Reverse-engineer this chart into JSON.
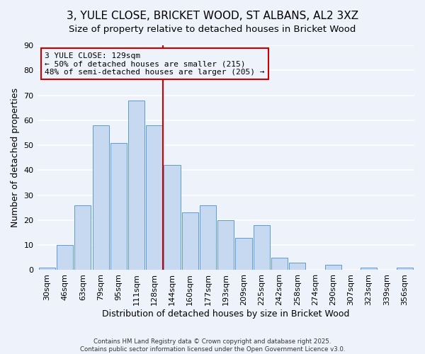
{
  "title": "3, YULE CLOSE, BRICKET WOOD, ST ALBANS, AL2 3XZ",
  "subtitle": "Size of property relative to detached houses in Bricket Wood",
  "xlabel": "Distribution of detached houses by size in Bricket Wood",
  "ylabel": "Number of detached properties",
  "bar_labels": [
    "30sqm",
    "46sqm",
    "63sqm",
    "79sqm",
    "95sqm",
    "111sqm",
    "128sqm",
    "144sqm",
    "160sqm",
    "177sqm",
    "193sqm",
    "209sqm",
    "225sqm",
    "242sqm",
    "258sqm",
    "274sqm",
    "290sqm",
    "307sqm",
    "323sqm",
    "339sqm",
    "356sqm"
  ],
  "bar_values": [
    1,
    10,
    26,
    58,
    51,
    68,
    58,
    42,
    23,
    26,
    20,
    13,
    18,
    5,
    3,
    0,
    2,
    0,
    1,
    0,
    1
  ],
  "bar_color": "#c6d9f1",
  "bar_edge_color": "#5b9bd5",
  "vline_color": "#cc0000",
  "vline_index": 6,
  "annotation_title": "3 YULE CLOSE: 129sqm",
  "annotation_line1": "← 50% of detached houses are smaller (215)",
  "annotation_line2": "48% of semi-detached houses are larger (205) →",
  "annotation_box_edge": "#cc0000",
  "ylim": [
    0,
    90
  ],
  "yticks": [
    0,
    10,
    20,
    30,
    40,
    50,
    60,
    70,
    80,
    90
  ],
  "title_fontsize": 11,
  "axis_label_fontsize": 9,
  "tick_fontsize": 8,
  "annotation_fontsize": 8,
  "footer_line1": "Contains HM Land Registry data © Crown copyright and database right 2025.",
  "footer_line2": "Contains public sector information licensed under the Open Government Licence v3.0.",
  "background_color": "#eef2fa",
  "grid_color": "#ffffff"
}
